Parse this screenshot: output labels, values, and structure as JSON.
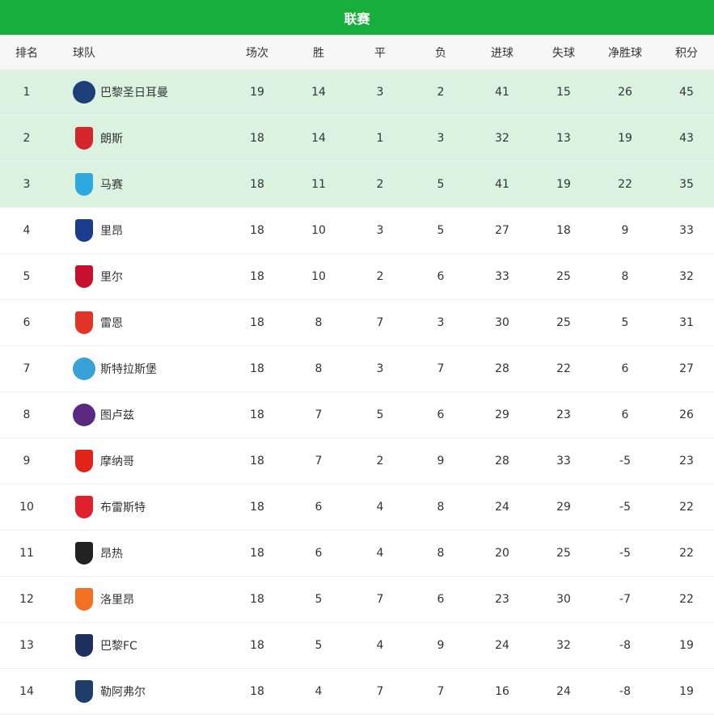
{
  "title": "联赛",
  "columns": [
    "排名",
    "球队",
    "场次",
    "胜",
    "平",
    "负",
    "进球",
    "失球",
    "净胜球",
    "积分"
  ],
  "highlight_color": "#dcf2e1",
  "header_color": "#18ae3b",
  "rows": [
    {
      "rank": "1",
      "team": "巴黎圣日耳曼",
      "played": "19",
      "w": "14",
      "d": "3",
      "l": "2",
      "gf": "41",
      "ga": "15",
      "gd": "26",
      "pts": "45",
      "logo": "psg-logo",
      "color": "#1d3f78",
      "shape": "circle"
    },
    {
      "rank": "2",
      "team": "朗斯",
      "played": "18",
      "w": "14",
      "d": "1",
      "l": "3",
      "gf": "32",
      "ga": "13",
      "gd": "19",
      "pts": "43",
      "logo": "lens-logo",
      "color": "#d4242c",
      "shape": "shield"
    },
    {
      "rank": "3",
      "team": "马赛",
      "played": "18",
      "w": "11",
      "d": "2",
      "l": "5",
      "gf": "41",
      "ga": "19",
      "gd": "22",
      "pts": "35",
      "logo": "marseille-logo",
      "color": "#2fa8e0",
      "shape": "shield"
    },
    {
      "rank": "4",
      "team": "里昂",
      "played": "18",
      "w": "10",
      "d": "3",
      "l": "5",
      "gf": "27",
      "ga": "18",
      "gd": "9",
      "pts": "33",
      "logo": "lyon-logo",
      "color": "#1b3b8f",
      "shape": "shield"
    },
    {
      "rank": "5",
      "team": "里尔",
      "played": "18",
      "w": "10",
      "d": "2",
      "l": "6",
      "gf": "33",
      "ga": "25",
      "gd": "8",
      "pts": "32",
      "logo": "lille-logo",
      "color": "#c8102e",
      "shape": "shield"
    },
    {
      "rank": "6",
      "team": "雷恩",
      "played": "18",
      "w": "8",
      "d": "7",
      "l": "3",
      "gf": "30",
      "ga": "25",
      "gd": "5",
      "pts": "31",
      "logo": "rennes-logo",
      "color": "#e13327",
      "shape": "shield"
    },
    {
      "rank": "7",
      "team": "斯特拉斯堡",
      "played": "18",
      "w": "8",
      "d": "3",
      "l": "7",
      "gf": "28",
      "ga": "22",
      "gd": "6",
      "pts": "27",
      "logo": "strasbourg-logo",
      "color": "#3aa0d8",
      "shape": "circle"
    },
    {
      "rank": "8",
      "team": "图卢兹",
      "played": "18",
      "w": "7",
      "d": "5",
      "l": "6",
      "gf": "29",
      "ga": "23",
      "gd": "6",
      "pts": "26",
      "logo": "toulouse-logo",
      "color": "#5b2a80",
      "shape": "circle"
    },
    {
      "rank": "9",
      "team": "摩纳哥",
      "played": "18",
      "w": "7",
      "d": "2",
      "l": "9",
      "gf": "28",
      "ga": "33",
      "gd": "-5",
      "pts": "23",
      "logo": "monaco-logo",
      "color": "#e2231a",
      "shape": "shield"
    },
    {
      "rank": "10",
      "team": "布雷斯特",
      "played": "18",
      "w": "6",
      "d": "4",
      "l": "8",
      "gf": "24",
      "ga": "29",
      "gd": "-5",
      "pts": "22",
      "logo": "brest-logo",
      "color": "#e0202c",
      "shape": "shield"
    },
    {
      "rank": "11",
      "team": "昂热",
      "played": "18",
      "w": "6",
      "d": "4",
      "l": "8",
      "gf": "20",
      "ga": "25",
      "gd": "-5",
      "pts": "22",
      "logo": "angers-logo",
      "color": "#222222",
      "shape": "shield"
    },
    {
      "rank": "12",
      "team": "洛里昂",
      "played": "18",
      "w": "5",
      "d": "7",
      "l": "6",
      "gf": "23",
      "ga": "30",
      "gd": "-7",
      "pts": "22",
      "logo": "lorient-logo",
      "color": "#f36f21",
      "shape": "shield"
    },
    {
      "rank": "13",
      "team": "巴黎FC",
      "played": "18",
      "w": "5",
      "d": "4",
      "l": "9",
      "gf": "24",
      "ga": "32",
      "gd": "-8",
      "pts": "19",
      "logo": "paris-fc-logo",
      "color": "#1c2f5e",
      "shape": "shield"
    },
    {
      "rank": "14",
      "team": "勒阿弗尔",
      "played": "18",
      "w": "4",
      "d": "7",
      "l": "7",
      "gf": "16",
      "ga": "24",
      "gd": "-8",
      "pts": "19",
      "logo": "le-havre-logo",
      "color": "#1f3d6b",
      "shape": "shield"
    }
  ]
}
